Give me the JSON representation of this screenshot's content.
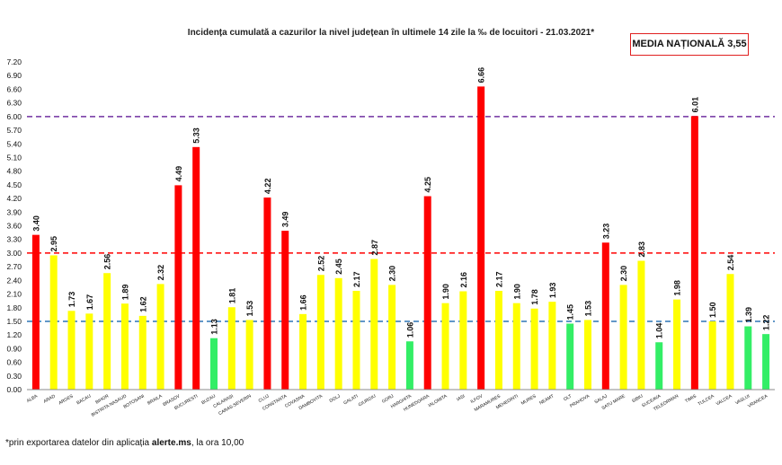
{
  "title": "Incidența cumulată a cazurilor la nivel județean în ultimele 14 zile la ‰ de locuitori - 21.03.2021*",
  "national_badge": "MEDIA NAȚIONALĂ 3,55",
  "footnote": {
    "prefix": "*prin exportarea datelor din aplicația ",
    "app": "alerte.ms",
    "suffix": ", la ora 10,00"
  },
  "colors": {
    "red": "#ff0000",
    "yellow": "#ffff00",
    "green": "#33ee66",
    "purple_line": "#7030a0",
    "red_line": "#ff0000",
    "blue_line": "#2e75b6"
  },
  "chart_data": {
    "type": "bar",
    "title": "Incidența cumulată a cazurilor la nivel județean în ultimele 14 zile la ‰ de locuitori - 21.03.2021*",
    "xlabel": "",
    "ylabel": "",
    "ylim": [
      0,
      7.2
    ],
    "ytick_step": 0.3,
    "grid": false,
    "reference_lines": [
      {
        "value": 6.0,
        "color": "purple",
        "style": "dashed"
      },
      {
        "value": 3.0,
        "color": "red",
        "style": "dashed"
      },
      {
        "value": 1.5,
        "color": "blue",
        "style": "dashed"
      }
    ],
    "categories": [
      "ALBA",
      "ARAD",
      "ARGES",
      "BACAU",
      "BIHOR",
      "BISTRITA NASAUD",
      "BOTOSANI",
      "BRAILA",
      "BRASOV",
      "BUCURESTI",
      "BUZAU",
      "CALARASI",
      "CARAS-SEVERIN",
      "CLUJ",
      "CONSTANTA",
      "COVASNA",
      "DAMBOVITA",
      "DOLJ",
      "GALATI",
      "GIURGIU",
      "GORJ",
      "HARGHITA",
      "HUNEDOARA",
      "IALOMITA",
      "IASI",
      "ILFOV",
      "MARAMURES",
      "MEHEDINTI",
      "MURES",
      "NEAMT",
      "OLT",
      "PRAHOVA",
      "SALAJ",
      "SATU MARE",
      "SIBIU",
      "SUCEAVA",
      "TELEORMAN",
      "TIMIS",
      "TULCEA",
      "VALCEA",
      "VASLUI",
      "VRANCEA"
    ],
    "values": [
      3.4,
      2.95,
      1.73,
      1.67,
      2.56,
      1.89,
      1.62,
      2.32,
      4.49,
      5.33,
      1.13,
      1.81,
      1.53,
      4.22,
      3.49,
      1.66,
      2.52,
      2.45,
      2.17,
      2.87,
      2.3,
      1.06,
      4.25,
      1.9,
      2.16,
      6.66,
      2.17,
      1.9,
      1.78,
      1.93,
      1.45,
      1.53,
      3.23,
      2.3,
      2.83,
      1.04,
      1.98,
      6.01,
      1.5,
      2.54,
      1.39,
      1.22
    ],
    "value_labels": [
      "3.40",
      "2.95",
      "1.73",
      "1.67",
      "2.56",
      "1.89",
      "1.62",
      "2.32",
      "4.49",
      "5.33",
      "1.13",
      "1.81",
      "1.53",
      "4.22",
      "3.49",
      "1.66",
      "2.52",
      "2.45",
      "2.17",
      "2.87",
      "2.30",
      "1.06",
      "4.25",
      "1.90",
      "2.16",
      "6.66",
      "2.17",
      "1.90",
      "1.78",
      "1.93",
      "1.45",
      "1.53",
      "3.23",
      "2.30",
      "2.83",
      "1.04",
      "1.98",
      "6.01",
      "1.50",
      "2.54",
      "1.39",
      "1.22"
    ],
    "y_tick_labels": [
      "0.00",
      "0.30",
      "0.60",
      "0.90",
      "1.20",
      "1.50",
      "1.80",
      "2.10",
      "2.40",
      "2.70",
      "3.00",
      "3.30",
      "3.60",
      "3.90",
      "4.20",
      "4.50",
      "4.80",
      "5.10",
      "5.40",
      "5.70",
      "6.00",
      "6.30",
      "6.60",
      "6.90",
      "7.20"
    ]
  }
}
